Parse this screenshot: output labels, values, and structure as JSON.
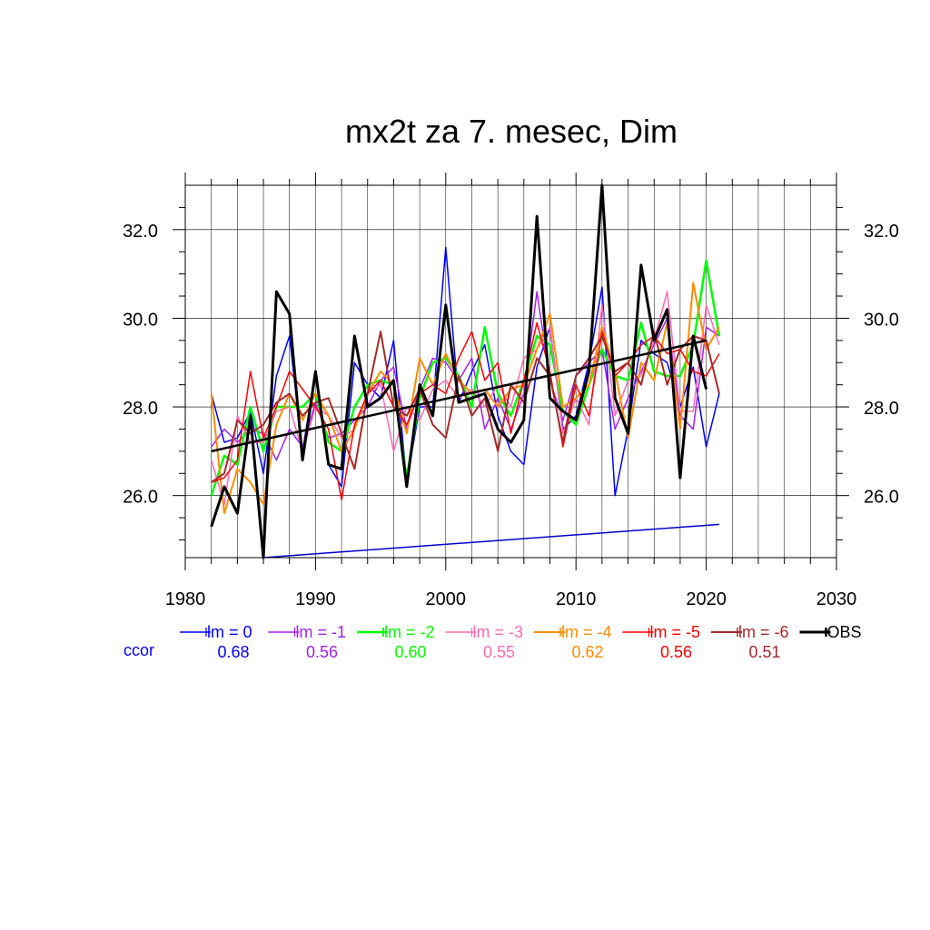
{
  "chart_data": {
    "type": "line",
    "title": "mx2t za 7. mesec, Dim",
    "xlim": [
      1980,
      2030
    ],
    "ylim": [
      24.6,
      33.0
    ],
    "x_ticks": [
      "1980",
      "1990",
      "2000",
      "2010",
      "2020",
      "2030"
    ],
    "y_ticks": [
      "26.0",
      "28.0",
      "30.0",
      "32.0"
    ],
    "y_ticks_right": [
      "26.0",
      "28.0",
      "30.0",
      "32.0"
    ],
    "grid": true,
    "legend_position": "bottom",
    "ccor_label": "ccor",
    "x": [
      1982,
      1983,
      1984,
      1985,
      1986,
      1987,
      1988,
      1989,
      1990,
      1991,
      1992,
      1993,
      1994,
      1995,
      1996,
      1997,
      1998,
      1999,
      2000,
      2001,
      2002,
      2003,
      2004,
      2005,
      2006,
      2007,
      2008,
      2009,
      2010,
      2011,
      2012,
      2013,
      2014,
      2015,
      2016,
      2017,
      2018,
      2019,
      2020,
      2021
    ],
    "series": [
      {
        "name": "lm = 0",
        "color": "#0000ff",
        "width": 1.5,
        "ccor": "0.68",
        "values": [
          28.3,
          27.2,
          27.3,
          27.9,
          26.5,
          28.7,
          29.6,
          27.0,
          28.8,
          26.7,
          26.2,
          29.0,
          28.5,
          28.2,
          29.5,
          26.3,
          28.0,
          28.0,
          31.6,
          28.1,
          28.8,
          29.4,
          27.8,
          27.0,
          26.7,
          28.9,
          29.8,
          27.5,
          27.8,
          29.0,
          30.7,
          26.0,
          27.5,
          29.5,
          29.2,
          29.0,
          28.0,
          28.9,
          27.1,
          28.3
        ]
      },
      {
        "name": "lm = -1",
        "color": "#a020f0",
        "width": 1.5,
        "ccor": "0.56",
        "values": [
          27.1,
          27.5,
          27.2,
          27.5,
          27.4,
          26.8,
          27.5,
          27.1,
          28.1,
          27.3,
          27.4,
          27.7,
          28.0,
          28.6,
          28.9,
          27.5,
          28.4,
          29.1,
          29.0,
          28.6,
          29.1,
          27.5,
          28.2,
          27.5,
          28.3,
          30.6,
          28.6,
          27.7,
          28.7,
          29.0,
          29.3,
          27.5,
          28.2,
          28.8,
          29.4,
          30.0,
          27.8,
          27.5,
          29.8,
          29.6
        ]
      },
      {
        "name": "lm = -2",
        "color": "#00ff00",
        "width": 2.5,
        "ccor": "0.60",
        "values": [
          26.0,
          26.9,
          26.7,
          28.0,
          27.0,
          28.0,
          28.0,
          28.0,
          28.3,
          27.2,
          27.0,
          28.0,
          28.5,
          28.6,
          28.5,
          26.4,
          28.2,
          29.0,
          29.1,
          28.7,
          28.0,
          29.8,
          28.3,
          27.8,
          28.6,
          29.6,
          29.4,
          27.9,
          27.6,
          28.5,
          29.3,
          28.7,
          28.6,
          29.9,
          28.8,
          28.7,
          28.7,
          29.4,
          31.3,
          29.6
        ]
      },
      {
        "name": "lm = -3",
        "color": "#ff69b4",
        "width": 1.5,
        "ccor": "0.55",
        "values": [
          26.8,
          25.8,
          27.8,
          27.2,
          27.2,
          27.9,
          28.0,
          27.0,
          28.0,
          27.8,
          27.3,
          27.5,
          28.3,
          28.5,
          27.0,
          28.0,
          27.7,
          28.4,
          28.6,
          28.2,
          28.4,
          28.0,
          28.5,
          28.0,
          29.1,
          29.3,
          29.8,
          27.4,
          28.2,
          27.6,
          30.3,
          27.8,
          28.6,
          28.7,
          29.5,
          30.6,
          27.9,
          27.9,
          30.3,
          29.4
        ]
      },
      {
        "name": "lm = -4",
        "color": "#ff8c00",
        "width": 2.0,
        "ccor": "0.62",
        "values": [
          28.3,
          25.6,
          26.6,
          26.3,
          25.8,
          27.6,
          28.3,
          27.7,
          28.3,
          27.8,
          27.0,
          27.5,
          28.3,
          28.8,
          28.5,
          27.4,
          29.1,
          28.5,
          29.2,
          28.6,
          28.3,
          28.4,
          28.0,
          28.4,
          28.5,
          29.3,
          30.1,
          28.0,
          28.2,
          28.5,
          29.8,
          28.8,
          27.3,
          29.0,
          28.6,
          29.9,
          27.5,
          30.8,
          29.3,
          29.8
        ]
      },
      {
        "name": "lm = -5",
        "color": "#ff0000",
        "width": 1.5,
        "ccor": "0.56",
        "values": [
          26.3,
          26.4,
          26.8,
          28.8,
          27.3,
          28.0,
          28.8,
          28.4,
          28.0,
          27.5,
          25.9,
          27.6,
          28.3,
          28.6,
          28.0,
          27.6,
          28.3,
          28.5,
          28.3,
          29.1,
          29.7,
          28.6,
          29.0,
          27.4,
          28.6,
          29.9,
          28.8,
          27.1,
          28.5,
          27.8,
          29.7,
          28.7,
          29.0,
          29.4,
          29.6,
          29.2,
          29.3,
          28.8,
          28.7,
          29.2
        ]
      },
      {
        "name": "lm = -6",
        "color": "#a52a2a",
        "width": 2.0,
        "ccor": "0.51",
        "values": [
          26.3,
          26.5,
          27.7,
          27.4,
          27.6,
          28.1,
          28.3,
          27.8,
          28.1,
          28.2,
          27.4,
          26.6,
          28.3,
          29.7,
          28.0,
          27.8,
          28.4,
          27.6,
          27.3,
          28.7,
          27.8,
          28.2,
          27.0,
          28.5,
          28.1,
          29.1,
          28.7,
          27.2,
          28.7,
          29.1,
          29.6,
          28.8,
          29.0,
          28.5,
          29.7,
          28.5,
          29.3,
          29.6,
          29.5,
          28.3
        ]
      },
      {
        "name": "OBS",
        "color": "#000000",
        "width": 3.0,
        "ccor": "",
        "values": [
          25.3,
          26.2,
          25.6,
          27.8,
          24.6,
          30.6,
          30.1,
          26.8,
          28.8,
          26.7,
          26.6,
          29.6,
          28.0,
          28.2,
          28.6,
          26.2,
          28.5,
          27.8,
          30.3,
          28.1,
          28.2,
          28.3,
          27.5,
          27.2,
          27.7,
          32.3,
          28.2,
          27.9,
          27.7,
          28.8,
          33.0,
          28.2,
          27.4,
          31.2,
          29.5,
          30.2,
          26.4,
          29.6,
          28.4,
          null
        ]
      }
    ],
    "trend_obs": {
      "color": "#000000",
      "x": [
        1982,
        2020
      ],
      "y": [
        27.0,
        29.5
      ]
    },
    "trend_lm0": {
      "color": "#0000cc",
      "x": [
        1986,
        2021
      ],
      "y": [
        24.6,
        25.35
      ]
    }
  }
}
